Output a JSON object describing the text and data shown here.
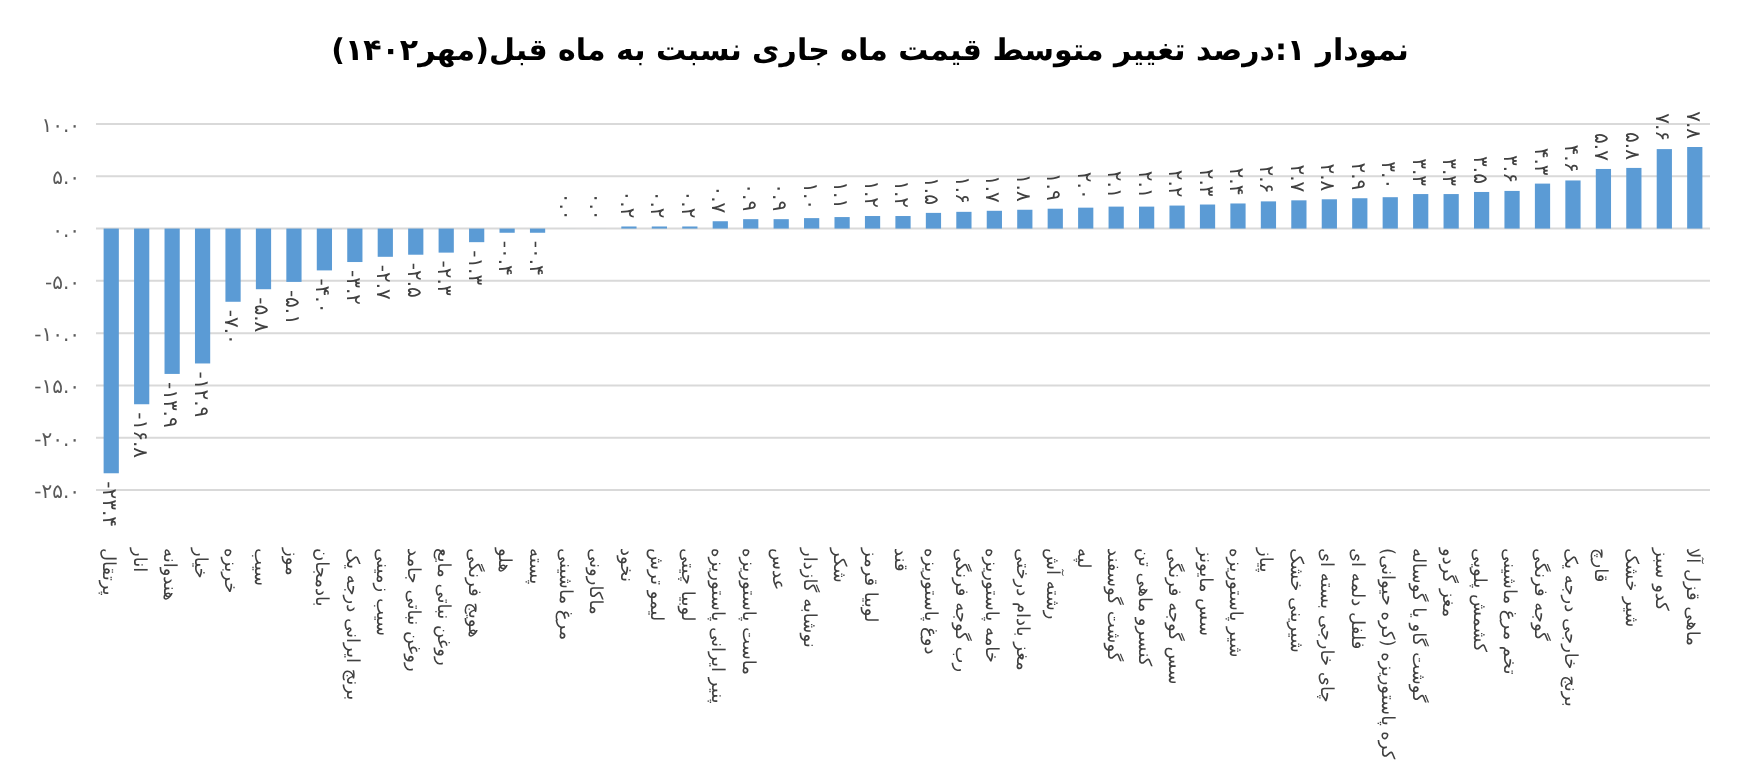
{
  "chart_data": {
    "type": "bar",
    "title": "نمودار ۱:درصد تغییر متوسط قیمت ماه جاری نسبت به ماه قبل(مهر۱۴۰۲)",
    "categories": [
      "پرتقال",
      "انار",
      "هندوانه",
      "خیار",
      "خربزه",
      "سیب",
      "موز",
      "بادمجان",
      "برنج ایرانی درجه یک",
      "سیب زمینی",
      "روغن نباتی جامد",
      "روغن نباتی مایع",
      "هویج فرنگی",
      "هلو",
      "پسته",
      "مرغ ماشینی",
      "ماکارونی",
      "نخود",
      "لیمو ترش",
      "لوبیا چیتی",
      "پنیر ایرانی پاستوریزه",
      "ماست پاستوریزه",
      "عدس",
      "نوشابه گازدار",
      "شکر",
      "لوبیا قرمز",
      "قند",
      "دوغ پاستوریزه",
      "رب گوجه فرنگی",
      "خامه پاستوریزه",
      "مغز بادام درختی",
      "رشته آش",
      "لپه",
      "گوشت گوسفند",
      "کنسرو ماهی تن",
      "سس گوجه فرنگی",
      "سس مایونز",
      "شیر پاستوریزه",
      "پیاز",
      "شیرینی خشک",
      "چای خارجی بسته ای",
      "فلفل دلمه ای",
      "کره پاستوریزه (کره حیوانی)",
      "گوشت گاو یا گوساله",
      "مغز گردو",
      "کشمش پلویی",
      "تخم مرغ ماشینی",
      "گوجه فرنگی",
      "برنج خارجی درجه یک",
      "قارچ",
      "شیر خشک",
      "کدو سبز",
      "ماهی قزل آلا"
    ],
    "values": [
      -23.4,
      -16.8,
      -13.9,
      -12.9,
      -7.0,
      -5.8,
      -5.1,
      -4.0,
      -3.2,
      -2.7,
      -2.5,
      -2.3,
      -1.3,
      -0.4,
      -0.4,
      0.0,
      0.0,
      0.2,
      0.2,
      0.2,
      0.7,
      0.9,
      0.9,
      1.0,
      1.1,
      1.2,
      1.2,
      1.5,
      1.6,
      1.7,
      1.8,
      1.9,
      2.0,
      2.1,
      2.1,
      2.2,
      2.3,
      2.4,
      2.6,
      2.7,
      2.8,
      2.9,
      3.0,
      3.3,
      3.3,
      3.5,
      3.6,
      4.3,
      4.6,
      5.7,
      5.8,
      7.6,
      7.8
    ],
    "value_labels": [
      "-۲۳.۴",
      "-۱۶.۸",
      "-۱۳.۹",
      "-۱۲.۹",
      "-۷.۰",
      "-۵.۸",
      "-۵.۱",
      "-۴.۰",
      "-۳.۲",
      "-۲.۷",
      "-۲.۵",
      "-۲.۳",
      "-۱.۳",
      "-۰.۴",
      "-۰.۴",
      "۰.۰",
      "۰.۰",
      "۰.۲",
      "۰.۲",
      "۰.۲",
      "۰.۷",
      "۰.۹",
      "۰.۹",
      "۱.۰",
      "۱.۱",
      "۱.۲",
      "۱.۲",
      "۱.۵",
      "۱.۶",
      "۱.۷",
      "۱.۸",
      "۱.۹",
      "۲.۰",
      "۲.۱",
      "۲.۱",
      "۲.۲",
      "۲.۳",
      "۲.۴",
      "۲.۶",
      "۲.۷",
      "۲.۸",
      "۲.۹",
      "۳.۰",
      "۳.۳",
      "۳.۳",
      "۳.۵",
      "۳.۶",
      "۴.۳",
      "۴.۶",
      "۵.۷",
      "۵.۸",
      "۷.۶",
      "۷.۸"
    ],
    "color": "#5b9bd5",
    "ylim": [
      -25,
      10
    ],
    "yticks": [
      {
        "value": 10,
        "label": "۱۰.۰"
      },
      {
        "value": 5,
        "label": "۵.۰"
      },
      {
        "value": 0,
        "label": "۰.۰"
      },
      {
        "value": -5,
        "label": "-۵.۰"
      },
      {
        "value": -10,
        "label": "-۱۰.۰"
      },
      {
        "value": -15,
        "label": "-۱۵.۰"
      },
      {
        "value": -20,
        "label": "-۲۰.۰"
      },
      {
        "value": -25,
        "label": "-۲۵.۰"
      }
    ],
    "grid": "y"
  }
}
